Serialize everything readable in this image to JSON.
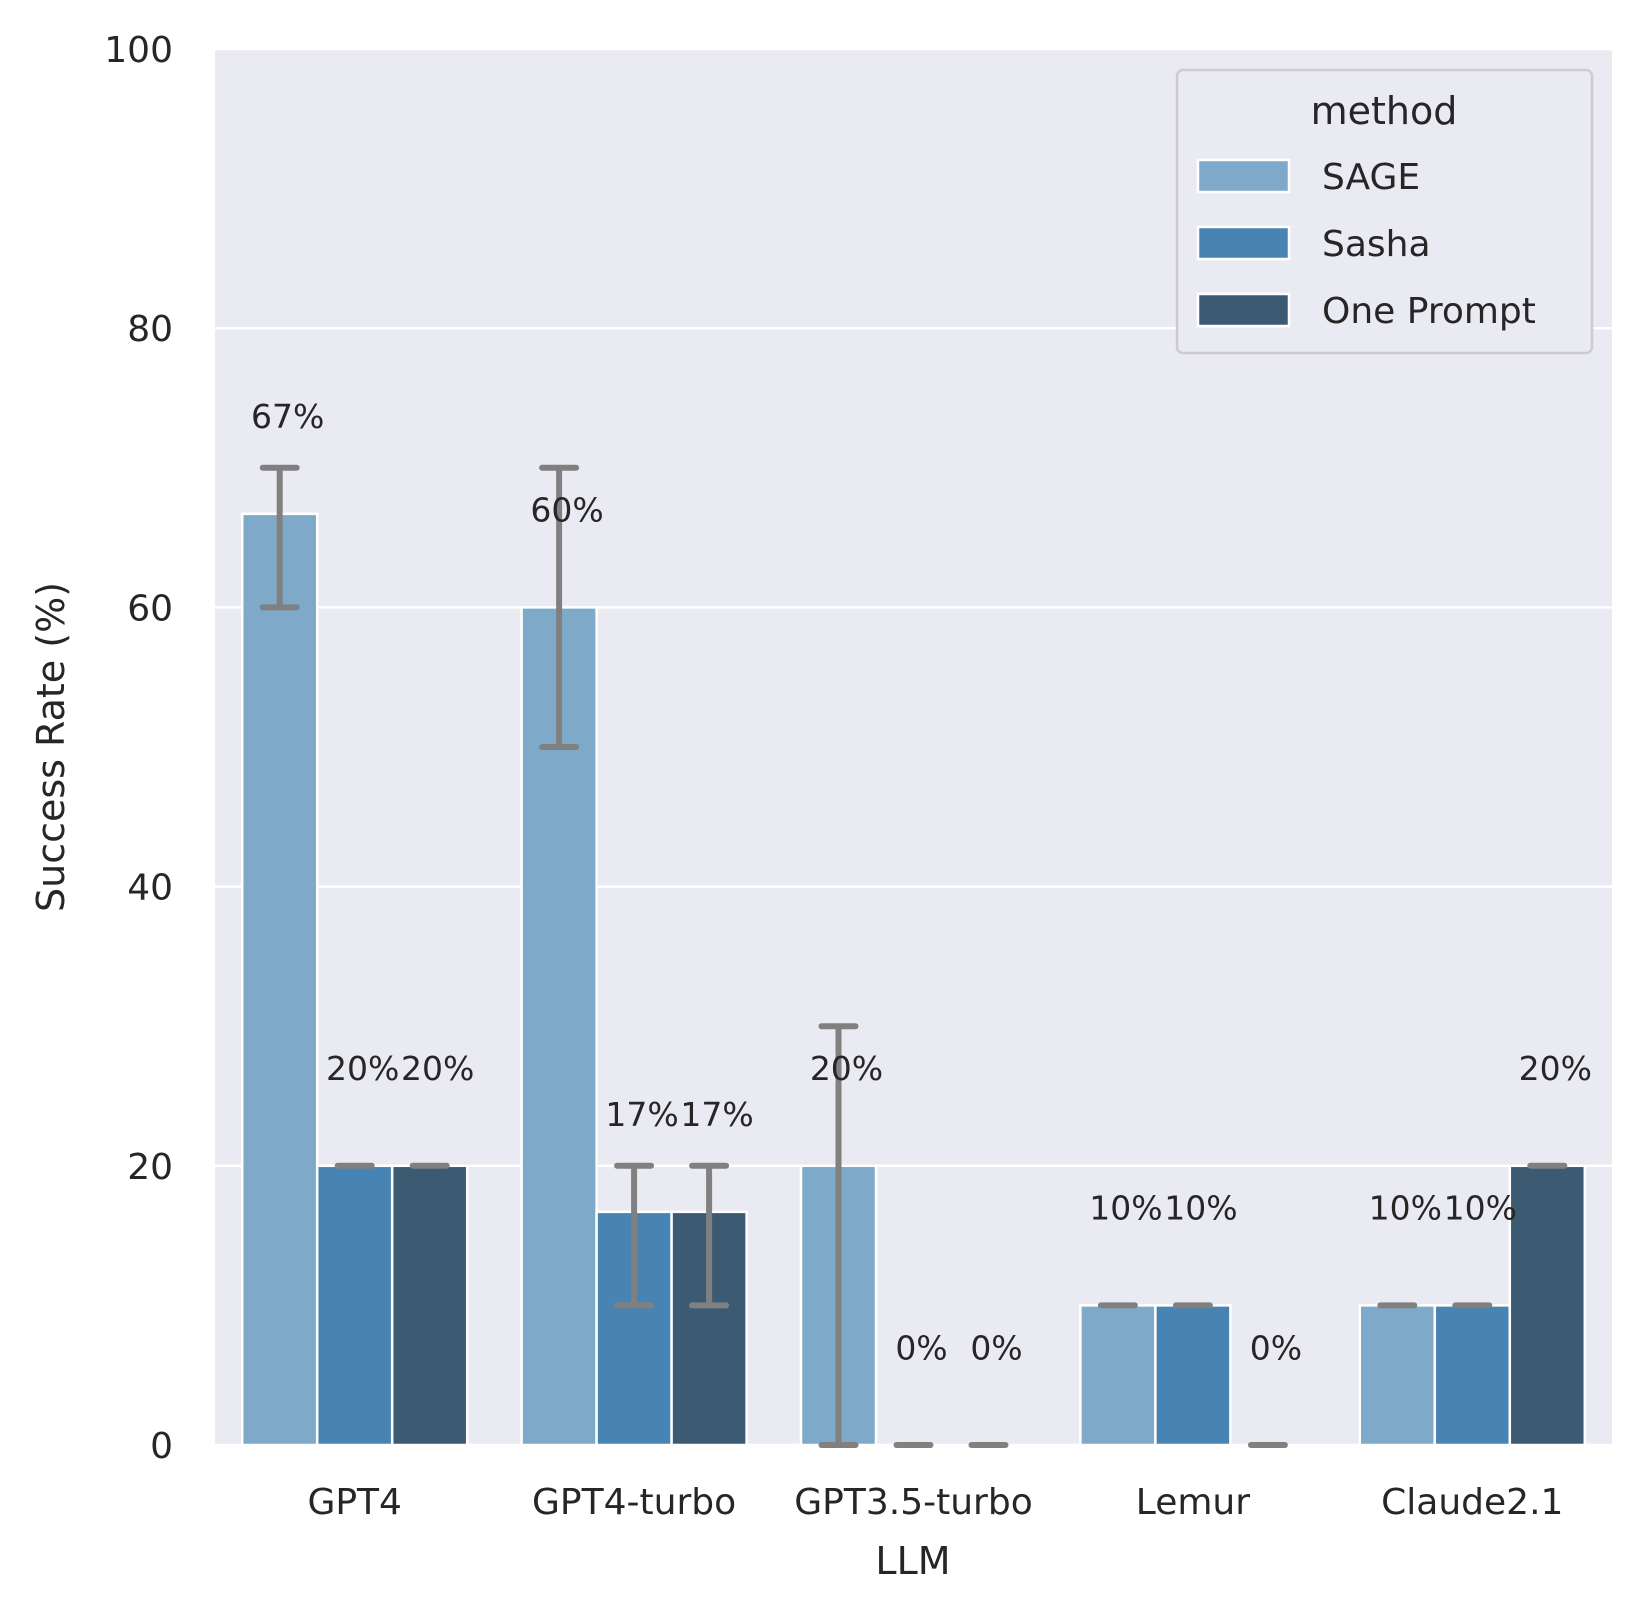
{
  "chart_data": {
    "type": "bar",
    "categories": [
      "GPT4",
      "GPT4-turbo",
      "GPT3.5-turbo",
      "Lemur",
      "Claude2.1"
    ],
    "series": [
      {
        "name": "SAGE",
        "color": "#7fa9c8",
        "values": [
          66.7,
          60,
          20,
          10,
          10
        ],
        "labels": [
          "67%",
          "60%",
          "20%",
          "10%",
          "10%"
        ],
        "err_low": [
          60,
          50,
          0,
          10,
          10
        ],
        "err_high": [
          70,
          70,
          30,
          10,
          10
        ]
      },
      {
        "name": "Sasha",
        "color": "#4884b3",
        "values": [
          20,
          16.7,
          0,
          10,
          10
        ],
        "labels": [
          "20%",
          "17%",
          "0%",
          "10%",
          "10%"
        ],
        "err_low": [
          20,
          10,
          0,
          10,
          10
        ],
        "err_high": [
          20,
          20,
          0,
          10,
          10
        ]
      },
      {
        "name": "One Prompt",
        "color": "#3c5b72",
        "values": [
          20,
          16.7,
          0,
          0,
          20
        ],
        "labels": [
          "20%",
          "17%",
          "0%",
          "0%",
          "20%"
        ],
        "err_low": [
          20,
          10,
          0,
          0,
          20
        ],
        "err_high": [
          20,
          20,
          0,
          0,
          20
        ]
      }
    ],
    "title": "",
    "xlabel": "LLM",
    "ylabel": "Success Rate (%)",
    "ylim": [
      0,
      100
    ],
    "yticks": [
      "0",
      "20",
      "40",
      "60",
      "80",
      "100"
    ],
    "grid": true,
    "legend": {
      "title": "method",
      "position": "top-right"
    },
    "background_color": "#eaeaf2",
    "errorbar_color": "#808080"
  }
}
